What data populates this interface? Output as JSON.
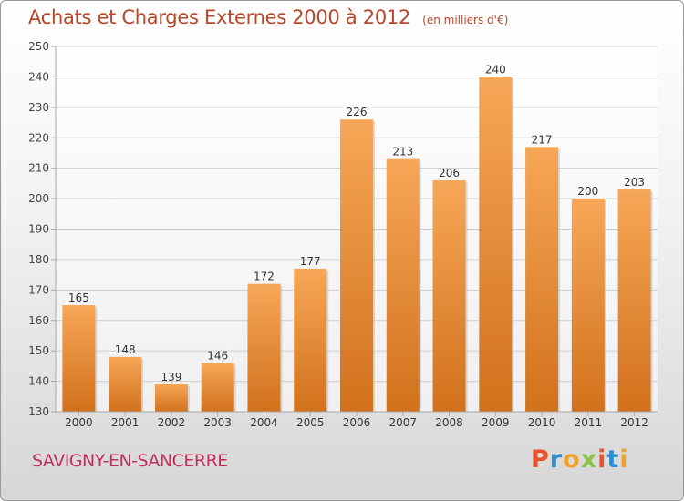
{
  "header": {
    "title": "Achats et Charges Externes 2000 à 2012",
    "unit": "(en milliers d'€)"
  },
  "footer": {
    "commune": "SAVIGNY-EN-SANCERRE",
    "logo_text": "Proxiti",
    "logo_colors": [
      "#e8542a",
      "#2e8fcf",
      "#f0a22a",
      "#8bc34a",
      "#e8542a",
      "#2e8fcf",
      "#f0a22a"
    ]
  },
  "chart_data": {
    "type": "bar",
    "categories": [
      "2000",
      "2001",
      "2002",
      "2003",
      "2004",
      "2005",
      "2006",
      "2007",
      "2008",
      "2009",
      "2010",
      "2011",
      "2012"
    ],
    "values": [
      165,
      148,
      139,
      146,
      172,
      177,
      226,
      213,
      206,
      240,
      217,
      200,
      203
    ],
    "ylim": [
      130,
      250
    ],
    "yticks": [
      130,
      140,
      150,
      160,
      170,
      180,
      190,
      200,
      210,
      220,
      230,
      240,
      250
    ],
    "grid": true,
    "bar_color_top": "#f6a757",
    "bar_color_bottom": "#d2711c"
  }
}
